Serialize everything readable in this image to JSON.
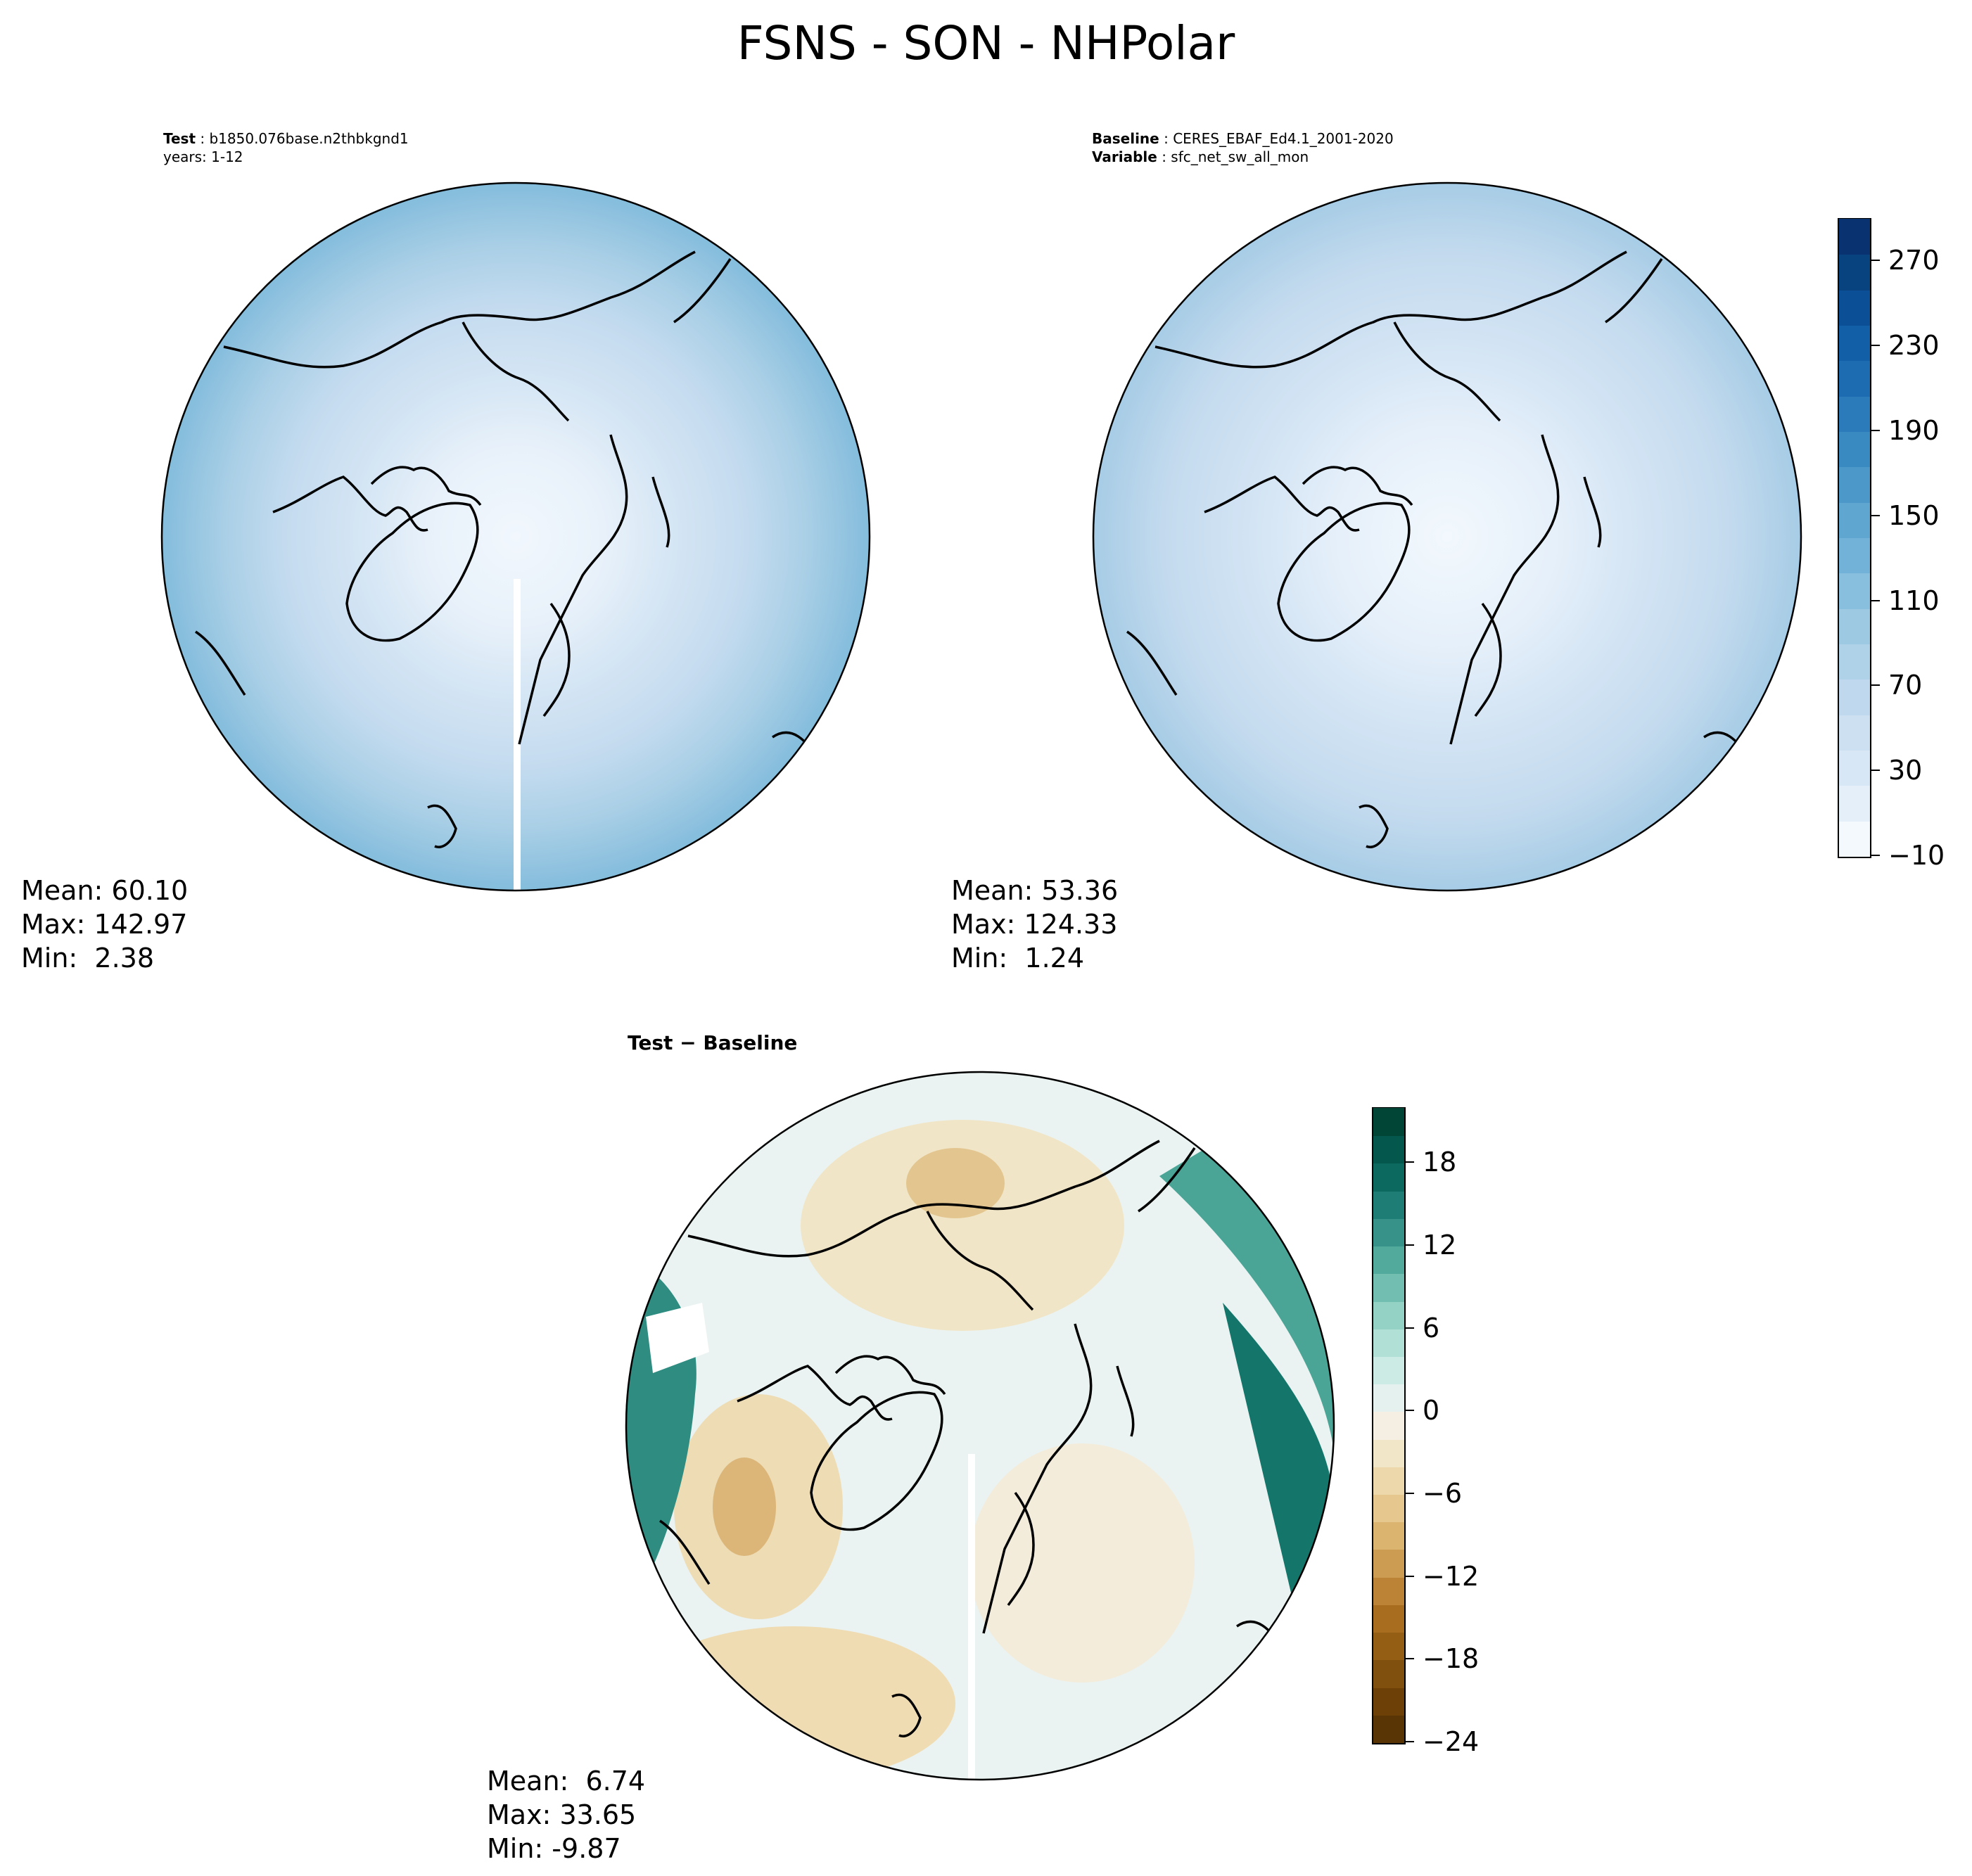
{
  "title": "FSNS - SON - NHPolar",
  "panels": {
    "test": {
      "label_key": "Test",
      "label_value": "b1850.076base.n2thbkgnd1",
      "line2": "years: 1-12",
      "stats": {
        "mean": "Mean: 60.10",
        "max": "Max: 142.97",
        "min": "Min:  2.38"
      }
    },
    "baseline": {
      "label_key": "Baseline",
      "label_value": "CERES_EBAF_Ed4.1_2001-2020",
      "line2_key": "Variable",
      "line2_value": "sfc_net_sw_all_mon",
      "stats": {
        "mean": "Mean: 53.36",
        "max": "Max: 124.33",
        "min": "Min:  1.24"
      }
    },
    "diff": {
      "label": "Test − Baseline",
      "stats": {
        "mean": "Mean:  6.74",
        "max": "Max: 33.65",
        "min": "Min: -9.87"
      }
    }
  },
  "colorbars": {
    "main": {
      "cmap": "Blues",
      "range": [
        -10,
        290
      ],
      "ticks": [
        "270",
        "230",
        "190",
        "150",
        "110",
        "70",
        "30",
        "−10"
      ],
      "tick_values": [
        270,
        230,
        190,
        150,
        110,
        70,
        30,
        -10
      ],
      "colors": [
        "#f4f9fe",
        "#e4eff9",
        "#d8e7f5",
        "#cde0f2",
        "#c0d8ee",
        "#b0d2e8",
        "#9dc9e2",
        "#88bede",
        "#73b2d8",
        "#5fa6d1",
        "#4b98c9",
        "#3a8ac2",
        "#2b7bba",
        "#1d6cb1",
        "#135fa7",
        "#0b5097",
        "#08437f",
        "#083370"
      ]
    },
    "diff": {
      "cmap": "BrBG",
      "range": [
        -24,
        22
      ],
      "ticks": [
        "18",
        "12",
        "6",
        "0",
        "−6",
        "−12",
        "−18",
        "−24"
      ],
      "tick_values": [
        18,
        12,
        6,
        0,
        -6,
        -12,
        -18,
        -24
      ],
      "colors": [
        "#593505",
        "#6c4007",
        "#80500e",
        "#955e15",
        "#a96d20",
        "#bc8236",
        "#cc9c52",
        "#dbb46f",
        "#e6c88f",
        "#ecd8ab",
        "#f2e6c8",
        "#f4efe2",
        "#e5f1ef",
        "#cdebe5",
        "#b1e0d6",
        "#94d2c6",
        "#72bfb2",
        "#52aa9d",
        "#37938a",
        "#1e7d75",
        "#0c695f",
        "#03574c",
        "#014536"
      ]
    }
  },
  "colors": {
    "land_outline": "#000000",
    "map_border": "#000000"
  }
}
